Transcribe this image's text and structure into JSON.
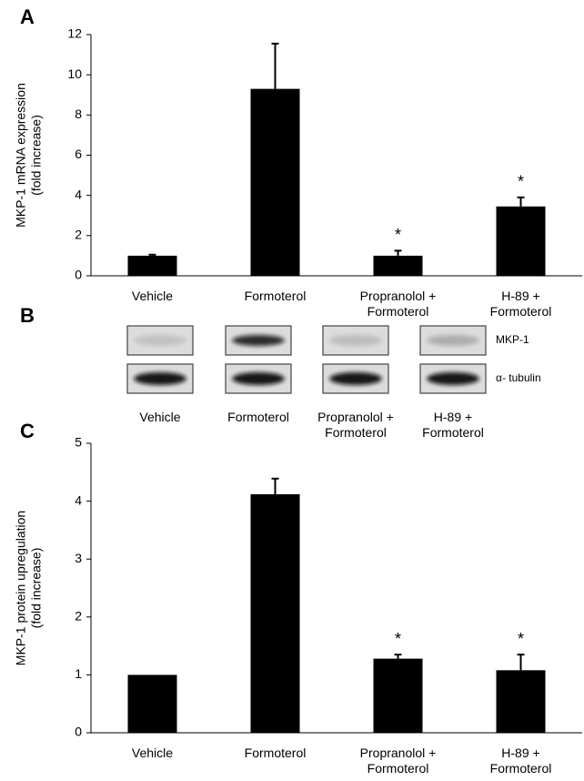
{
  "chart_data": [
    {
      "type": "bar",
      "panel_label": "A",
      "ylabel": [
        "MKP-1 mRNA expression",
        "(fold increase)"
      ],
      "categories": [
        "Vehicle",
        "Formoterol",
        "Propranolol +\nFormoterol",
        "H-89 +\nFormoterol"
      ],
      "values": [
        1,
        9.3,
        1.0,
        3.45
      ],
      "errors": [
        0.05,
        2.25,
        0.25,
        0.45
      ],
      "annotations": [
        null,
        null,
        "*",
        "*"
      ],
      "color": "#000000",
      "ylim": [
        0,
        12
      ],
      "yticks": [
        0,
        2,
        4,
        6,
        8,
        10,
        12
      ]
    },
    {
      "type": "bar",
      "panel_label": "C",
      "ylabel": [
        "MKP-1 protein upregulation",
        "(fold increase)"
      ],
      "categories": [
        "Vehicle",
        "Formoterol",
        "Propranolol +\nFormoterol",
        "H-89 +\nFormoterol"
      ],
      "values": [
        1,
        4.12,
        1.28,
        1.08
      ],
      "errors": [
        null,
        0.27,
        0.07,
        0.27
      ],
      "annotations": [
        null,
        null,
        "*",
        "*"
      ],
      "color": "#000000",
      "ylim": [
        0,
        5
      ],
      "yticks": [
        0,
        1,
        2,
        3,
        4,
        5
      ]
    }
  ],
  "blot": {
    "panel_label": "B",
    "rows": [
      "MKP-1",
      "α- tubulin"
    ],
    "lanes": [
      "Vehicle",
      "Formoterol",
      "Propranolol +\nFormoterol",
      "H-89 +\nFormoterol"
    ]
  }
}
